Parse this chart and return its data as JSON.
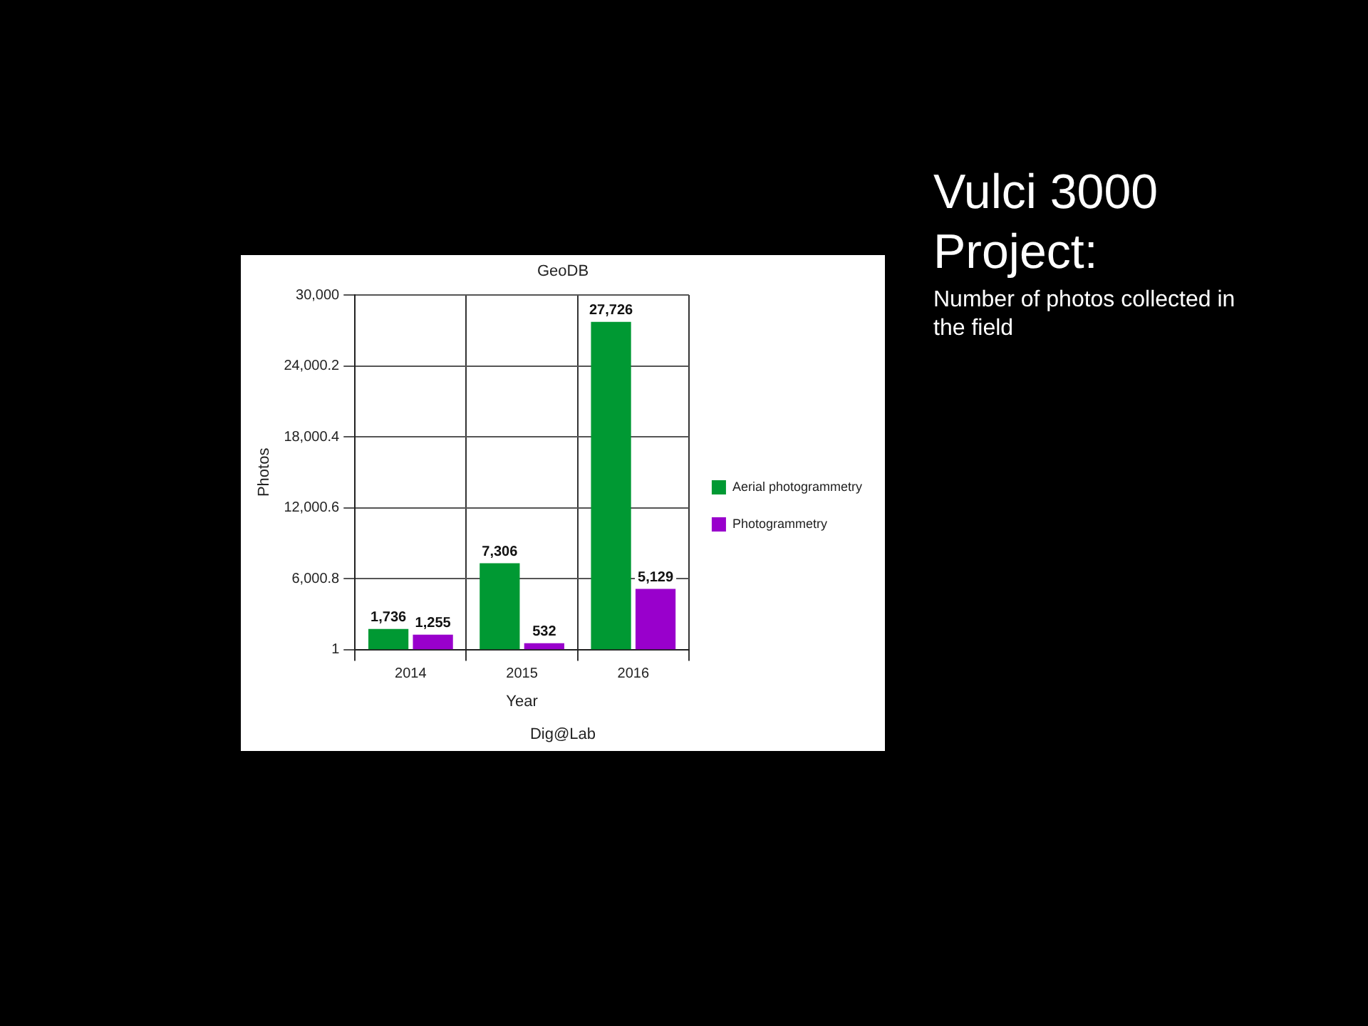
{
  "chart_data": {
    "type": "bar",
    "title": "Vulci 3000 Project:",
    "subtitle": "Number of photos collected in the field",
    "annotations": [
      "GeoDB",
      "Dig@Lab"
    ],
    "xlabel": "Year",
    "ylabel": "Photos",
    "categories": [
      "2014",
      "2015",
      "2016"
    ],
    "series": [
      {
        "name": "Aerial photogrammetry",
        "color": "#009933",
        "values": [
          1736,
          7306,
          27726
        ],
        "value_labels": [
          "1,736",
          "7,306",
          "27,726"
        ]
      },
      {
        "name": "Photogrammetry",
        "color": "#9900cc",
        "values": [
          1255,
          532,
          5129
        ],
        "value_labels": [
          "1,255",
          "532",
          "5,129"
        ]
      }
    ],
    "ylim": [
      1,
      30000
    ],
    "yticks": [
      1,
      {
        "value": 6000.8,
        "label": "6,000.8"
      },
      {
        "value": 12000.6,
        "label": "12,000.6"
      },
      {
        "value": 18000.4,
        "label": "18,000.4"
      },
      {
        "value": 24000.2,
        "label": "24,000.2"
      },
      {
        "value": 30000,
        "label": "30,000"
      }
    ],
    "grid": true,
    "legend": "right"
  }
}
